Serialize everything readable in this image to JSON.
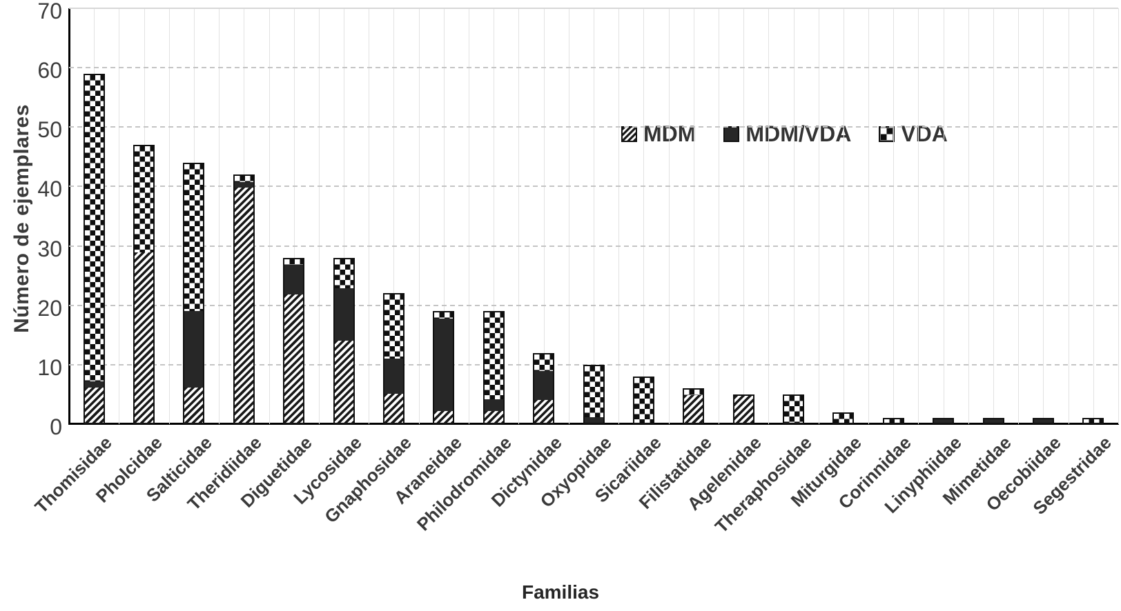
{
  "figure": {
    "background": "#ffffff",
    "ink_color": "#101010",
    "text_color": "#3a3a3a",
    "grid_color": "#c4c4c4"
  },
  "chart_data": {
    "type": "bar",
    "stacked": true,
    "title": "",
    "xlabel": "Familias",
    "ylabel": "Número de ejemplares",
    "ylim": [
      0,
      70
    ],
    "ytick_step": 10,
    "yticks": [
      "0",
      "10",
      "20",
      "30",
      "40",
      "50",
      "60",
      "70"
    ],
    "grid": true,
    "legend_position": "upper-center-right-inside",
    "categories": [
      "Thomisidae",
      "Pholcidae",
      "Salticidae",
      "Theridiidae",
      "Diguetidae",
      "Lycosidae",
      "Gnaphosidae",
      "Araneidae",
      "Philodromidae",
      "Dictynidae",
      "Oxyopidae",
      "Sicariidae",
      "Filistatidae",
      "Agelenidae",
      "Theraphosidae",
      "Miturgidae",
      "Corinnidae",
      "Linyphiidae",
      "Mimetidae",
      "Oecobiidae",
      "Segestridae"
    ],
    "series": [
      {
        "name": "MDM",
        "pattern": "hatch",
        "fill": "diagonal-stripes-black-on-white",
        "values": [
          6,
          29,
          6,
          40,
          22,
          14,
          5,
          2,
          2,
          4,
          0,
          0,
          5,
          5,
          0,
          0,
          0,
          0,
          0,
          0,
          0
        ]
      },
      {
        "name": "MDM/VDA",
        "pattern": "solid",
        "fill": "#272727",
        "values": [
          1,
          0,
          13,
          1,
          5,
          9,
          6,
          16,
          2,
          5,
          1,
          0,
          0,
          0,
          0,
          0,
          0,
          1,
          1,
          1,
          0
        ]
      },
      {
        "name": "VDA",
        "pattern": "checker",
        "fill": "black-white-checkerboard",
        "values": [
          52,
          18,
          25,
          1,
          1,
          5,
          11,
          1,
          15,
          3,
          9,
          8,
          1,
          0,
          5,
          2,
          1,
          0,
          0,
          0,
          1
        ]
      }
    ],
    "totals": [
      59,
      47,
      44,
      42,
      28,
      28,
      22,
      19,
      19,
      12,
      10,
      8,
      6,
      5,
      5,
      2,
      1,
      1,
      1,
      1,
      1
    ]
  }
}
